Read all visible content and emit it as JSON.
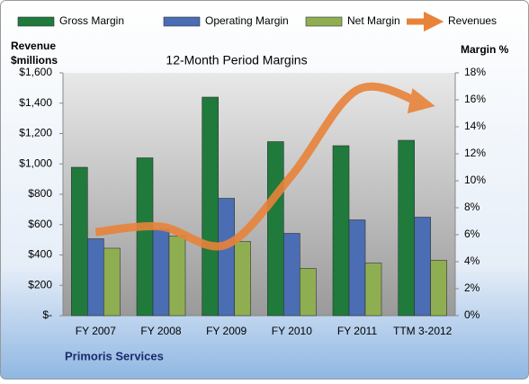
{
  "chart_data": {
    "type": "bar-line",
    "title": "12-Month Period Margins",
    "y_label": [
      "Revenue",
      "$millions"
    ],
    "y2_label": "Margin %",
    "source": "Primoris Services",
    "categories": [
      "FY 2007",
      "FY 2008",
      "FY 2009",
      "FY 2010",
      "FY 2011",
      "TTM 3-2012"
    ],
    "ylim": [
      0,
      1600
    ],
    "yticks": [
      {
        "value": 0,
        "label": "$-"
      },
      {
        "value": 200,
        "label": "$200"
      },
      {
        "value": 400,
        "label": "$400"
      },
      {
        "value": 600,
        "label": "$600"
      },
      {
        "value": 800,
        "label": "$800"
      },
      {
        "value": 1000,
        "label": "$1,000"
      },
      {
        "value": 1200,
        "label": "$1,200"
      },
      {
        "value": 1400,
        "label": "$1,400"
      },
      {
        "value": 1600,
        "label": "$1,600"
      }
    ],
    "y2lim": [
      0,
      18
    ],
    "y2ticks": [
      {
        "value": 0,
        "label": "0%"
      },
      {
        "value": 2,
        "label": "2%"
      },
      {
        "value": 4,
        "label": "4%"
      },
      {
        "value": 6,
        "label": "6%"
      },
      {
        "value": 8,
        "label": "8%"
      },
      {
        "value": 10,
        "label": "10%"
      },
      {
        "value": 12,
        "label": "12%"
      },
      {
        "value": 14,
        "label": "14%"
      },
      {
        "value": 16,
        "label": "16%"
      },
      {
        "value": 18,
        "label": "18%"
      }
    ],
    "series": [
      {
        "name": "Gross Margin",
        "type": "bar",
        "axis": "y2",
        "color": "#1f7a3c",
        "values": [
          11.0,
          11.7,
          16.2,
          12.9,
          12.6,
          13.0
        ]
      },
      {
        "name": "Operating Margin",
        "type": "bar",
        "axis": "y2",
        "color": "#4a6db3",
        "values": [
          5.7,
          6.4,
          8.7,
          6.1,
          7.1,
          7.3
        ]
      },
      {
        "name": "Net Margin",
        "type": "bar",
        "axis": "y2",
        "color": "#8fae52",
        "values": [
          5.0,
          5.9,
          5.5,
          3.5,
          3.9,
          4.1
        ]
      },
      {
        "name": "Revenues",
        "type": "line",
        "axis": "y",
        "color": "#e8833a",
        "values": [
          551,
          587,
          468,
          924,
          1487,
          1398
        ]
      }
    ]
  }
}
